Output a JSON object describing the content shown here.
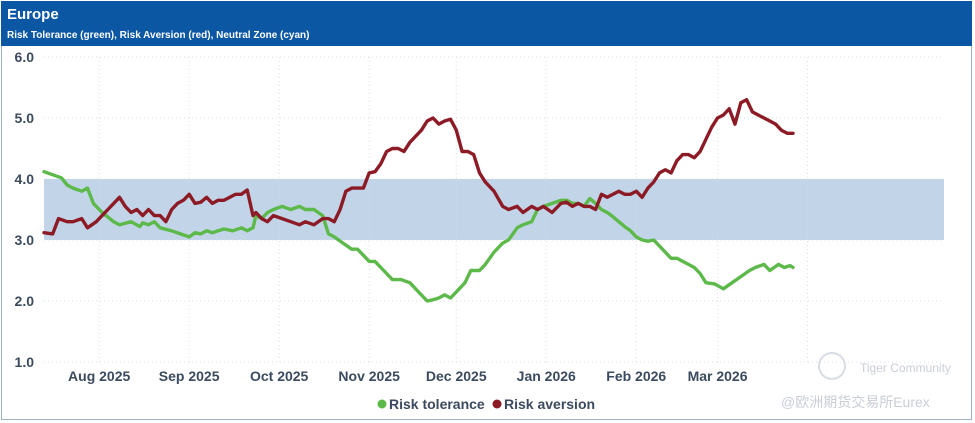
{
  "header": {
    "title": "Europe",
    "subtitle": "Risk Tolerance (green), Risk Aversion (red), Neutral Zone (cyan)"
  },
  "watermark": {
    "community": "Tiger Community",
    "account": "@欧洲期货交易所Eurex"
  },
  "colors": {
    "header_bg": "#0b57a4",
    "band": "#c2d5e8",
    "tolerance": "#5cb94a",
    "aversion": "#8d1b26"
  },
  "chart_data": {
    "type": "line",
    "title": "Europe",
    "subtitle": "Risk Tolerance (green), Risk Aversion (red), Neutral Zone (cyan)",
    "xlabel": "",
    "ylabel": "",
    "ylim": [
      1.0,
      6.0
    ],
    "yticks": [
      "6.0",
      "5.0",
      "4.0",
      "3.0",
      "2.0",
      "1.0"
    ],
    "ytick_values": [
      6,
      5,
      4,
      3,
      2,
      1
    ],
    "xlim": [
      0,
      310
    ],
    "month_labels": [
      "Aug 2025",
      "Sep 2025",
      "Oct 2025",
      "Nov 2025",
      "Dec 2025",
      "Jan 2026",
      "Feb 2026",
      "Mar 2026"
    ],
    "month_label_pos": [
      19,
      50,
      81,
      112,
      142,
      173,
      204,
      232
    ],
    "gridlines": [
      19,
      50,
      81,
      112,
      142,
      173,
      204,
      232,
      263
    ],
    "neutral_zone": [
      3.0,
      4.0
    ],
    "legend": [
      "Risk tolerance",
      "Risk aversion"
    ],
    "legend_position": "bottom-center",
    "series": [
      {
        "name": "Risk tolerance",
        "x": [
          0,
          6,
          8,
          10,
          13,
          15,
          17,
          20,
          24,
          26,
          30,
          33,
          34,
          36,
          38,
          40,
          44,
          47,
          50,
          52,
          54,
          56,
          58,
          60,
          62,
          65,
          68,
          70,
          72,
          73,
          75,
          77,
          79,
          82,
          85,
          88,
          90,
          93,
          96,
          98,
          100,
          103,
          106,
          108,
          110,
          112,
          114,
          117,
          120,
          123,
          126,
          128,
          130,
          132,
          134,
          136,
          138,
          140,
          142,
          145,
          147,
          150,
          152,
          155,
          158,
          160,
          163,
          165,
          168,
          170,
          172,
          175,
          178,
          180,
          182,
          184,
          186,
          188,
          190,
          192,
          194,
          196,
          198,
          200,
          202,
          204,
          206,
          208,
          210,
          212,
          214,
          216,
          218,
          220,
          222,
          224,
          226,
          228,
          231,
          234,
          237,
          240,
          243,
          245,
          248,
          250,
          253,
          255,
          257,
          258
        ],
        "values": [
          4.12,
          4.02,
          3.9,
          3.85,
          3.8,
          3.85,
          3.6,
          3.45,
          3.3,
          3.25,
          3.3,
          3.22,
          3.28,
          3.25,
          3.3,
          3.2,
          3.15,
          3.1,
          3.05,
          3.12,
          3.1,
          3.15,
          3.12,
          3.15,
          3.18,
          3.15,
          3.2,
          3.15,
          3.2,
          3.4,
          3.35,
          3.45,
          3.5,
          3.55,
          3.5,
          3.55,
          3.5,
          3.5,
          3.4,
          3.1,
          3.05,
          2.95,
          2.85,
          2.85,
          2.75,
          2.65,
          2.65,
          2.5,
          2.35,
          2.35,
          2.3,
          2.2,
          2.1,
          2.0,
          2.02,
          2.05,
          2.1,
          2.05,
          2.15,
          2.3,
          2.5,
          2.5,
          2.6,
          2.8,
          2.95,
          3.0,
          3.2,
          3.25,
          3.3,
          3.5,
          3.55,
          3.6,
          3.65,
          3.65,
          3.6,
          3.6,
          3.55,
          3.68,
          3.6,
          3.5,
          3.45,
          3.38,
          3.3,
          3.22,
          3.15,
          3.05,
          3.0,
          2.98,
          3.0,
          2.9,
          2.8,
          2.7,
          2.7,
          2.65,
          2.6,
          2.55,
          2.45,
          2.3,
          2.28,
          2.2,
          2.3,
          2.4,
          2.5,
          2.55,
          2.6,
          2.5,
          2.6,
          2.55,
          2.58,
          2.55
        ]
      },
      {
        "name": "Risk aversion",
        "x": [
          0,
          3,
          5,
          8,
          10,
          13,
          15,
          18,
          20,
          22,
          24,
          26,
          28,
          30,
          32,
          34,
          36,
          38,
          40,
          42,
          44,
          46,
          48,
          50,
          52,
          54,
          56,
          58,
          60,
          62,
          64,
          66,
          68,
          70,
          72,
          73,
          75,
          77,
          79,
          82,
          85,
          88,
          90,
          93,
          96,
          98,
          100,
          102,
          104,
          106,
          108,
          110,
          112,
          114,
          116,
          118,
          120,
          122,
          124,
          126,
          128,
          130,
          132,
          134,
          136,
          138,
          140,
          142,
          144,
          146,
          148,
          150,
          152,
          155,
          158,
          160,
          163,
          165,
          168,
          170,
          172,
          175,
          178,
          180,
          182,
          184,
          186,
          188,
          190,
          192,
          194,
          196,
          198,
          200,
          202,
          204,
          206,
          208,
          210,
          212,
          214,
          216,
          218,
          220,
          222,
          224,
          226,
          228,
          230,
          232,
          234,
          236,
          238,
          240,
          242,
          244,
          246,
          248,
          250,
          252,
          254,
          256,
          258
        ],
        "values": [
          3.12,
          3.1,
          3.35,
          3.3,
          3.3,
          3.35,
          3.2,
          3.3,
          3.4,
          3.5,
          3.6,
          3.7,
          3.55,
          3.45,
          3.5,
          3.4,
          3.5,
          3.4,
          3.4,
          3.3,
          3.5,
          3.6,
          3.65,
          3.75,
          3.6,
          3.62,
          3.7,
          3.6,
          3.65,
          3.65,
          3.7,
          3.75,
          3.75,
          3.82,
          3.4,
          3.45,
          3.35,
          3.3,
          3.4,
          3.35,
          3.3,
          3.25,
          3.3,
          3.25,
          3.35,
          3.35,
          3.3,
          3.5,
          3.8,
          3.85,
          3.85,
          3.85,
          4.1,
          4.12,
          4.25,
          4.45,
          4.5,
          4.5,
          4.45,
          4.6,
          4.7,
          4.8,
          4.95,
          5.0,
          4.9,
          4.95,
          4.98,
          4.8,
          4.45,
          4.45,
          4.4,
          4.1,
          3.95,
          3.8,
          3.55,
          3.5,
          3.55,
          3.45,
          3.55,
          3.5,
          3.55,
          3.45,
          3.6,
          3.62,
          3.55,
          3.6,
          3.55,
          3.55,
          3.5,
          3.75,
          3.7,
          3.75,
          3.8,
          3.75,
          3.75,
          3.8,
          3.7,
          3.85,
          3.95,
          4.1,
          4.15,
          4.1,
          4.3,
          4.4,
          4.4,
          4.35,
          4.45,
          4.65,
          4.85,
          5.0,
          5.05,
          5.15,
          4.9,
          5.25,
          5.3,
          5.1,
          5.05,
          5.0,
          4.95,
          4.9,
          4.8,
          4.75,
          4.75
        ]
      }
    ]
  }
}
